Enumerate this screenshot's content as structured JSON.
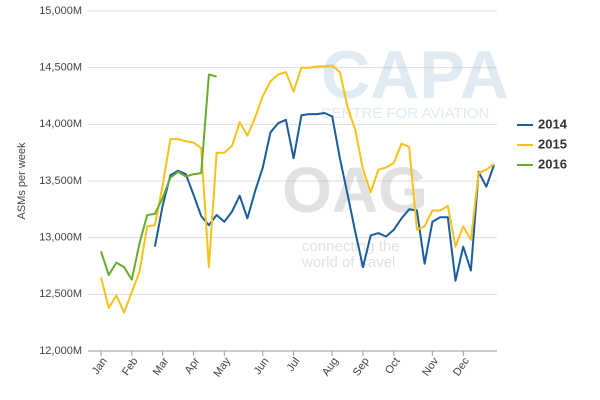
{
  "chart_data": {
    "type": "line",
    "y_label": "ASMs per week",
    "watermark": {
      "brand": "CAPA",
      "brand_sub": "CENTRE FOR AVIATION",
      "logo": "OAG",
      "tagline_1": "connecting the",
      "tagline_2": "world of travel"
    },
    "categories": [
      "Jan",
      null,
      null,
      null,
      "Feb",
      null,
      null,
      null,
      "Mar",
      null,
      null,
      null,
      "Apr",
      null,
      null,
      null,
      "May",
      null,
      null,
      null,
      null,
      "Jun",
      null,
      null,
      null,
      "Jul",
      null,
      null,
      null,
      null,
      "Aug",
      null,
      null,
      null,
      "Sep",
      null,
      null,
      null,
      "Oct",
      null,
      null,
      null,
      null,
      "Nov",
      null,
      null,
      null,
      "Dec",
      null,
      null,
      null,
      null
    ],
    "series": [
      {
        "name": "2014",
        "color": "#1b5c9e",
        "values": [
          null,
          null,
          null,
          null,
          null,
          null,
          null,
          12920,
          13280,
          13550,
          13590,
          13560,
          13380,
          13190,
          13110,
          13200,
          13140,
          13230,
          13370,
          13170,
          13410,
          13620,
          13930,
          14010,
          14040,
          13700,
          14080,
          14090,
          14090,
          14100,
          14070,
          13700,
          13380,
          13050,
          12740,
          13020,
          13040,
          13010,
          13070,
          13170,
          13250,
          13240,
          12770,
          13140,
          13180,
          13180,
          12620,
          12920,
          12710,
          13580,
          13450,
          13640
        ]
      },
      {
        "name": "2015",
        "color": "#f5c21b",
        "values": [
          12650,
          12380,
          12490,
          12340,
          12520,
          12700,
          13100,
          13110,
          13460,
          13870,
          13870,
          13850,
          13840,
          13790,
          12740,
          13750,
          13750,
          13810,
          14020,
          13900,
          14060,
          14250,
          14380,
          14440,
          14460,
          14290,
          14500,
          14500,
          14510,
          14510,
          14520,
          14460,
          14150,
          13950,
          13600,
          13400,
          13600,
          13620,
          13660,
          13830,
          13800,
          13070,
          13100,
          13240,
          13240,
          13280,
          12920,
          13100,
          12980,
          13570,
          13600,
          13650
        ]
      },
      {
        "name": "2016",
        "color": "#6aab2e",
        "values": [
          12880,
          12670,
          12780,
          12740,
          12630,
          12950,
          13200,
          13210,
          13350,
          13530,
          13580,
          13540,
          13560,
          13570,
          14440,
          14420,
          null,
          null,
          null,
          null,
          null,
          null,
          null,
          null,
          null,
          null,
          null,
          null,
          null,
          null,
          null,
          null,
          null,
          null,
          null,
          null,
          null,
          null,
          null,
          null,
          null,
          null,
          null,
          null,
          null,
          null,
          null,
          null,
          null,
          null,
          null,
          null
        ]
      }
    ],
    "ylim": [
      12000,
      15000
    ],
    "yticks": [
      {
        "value": 12000,
        "label": "12,000M"
      },
      {
        "value": 12500,
        "label": "12,500M"
      },
      {
        "value": 13000,
        "label": "13,000M"
      },
      {
        "value": 13500,
        "label": "13,500M"
      },
      {
        "value": 14000,
        "label": "14,000M"
      },
      {
        "value": 14500,
        "label": "14,500M"
      },
      {
        "value": 15000,
        "label": "15,000M"
      }
    ],
    "grid": true,
    "legend": "right"
  }
}
